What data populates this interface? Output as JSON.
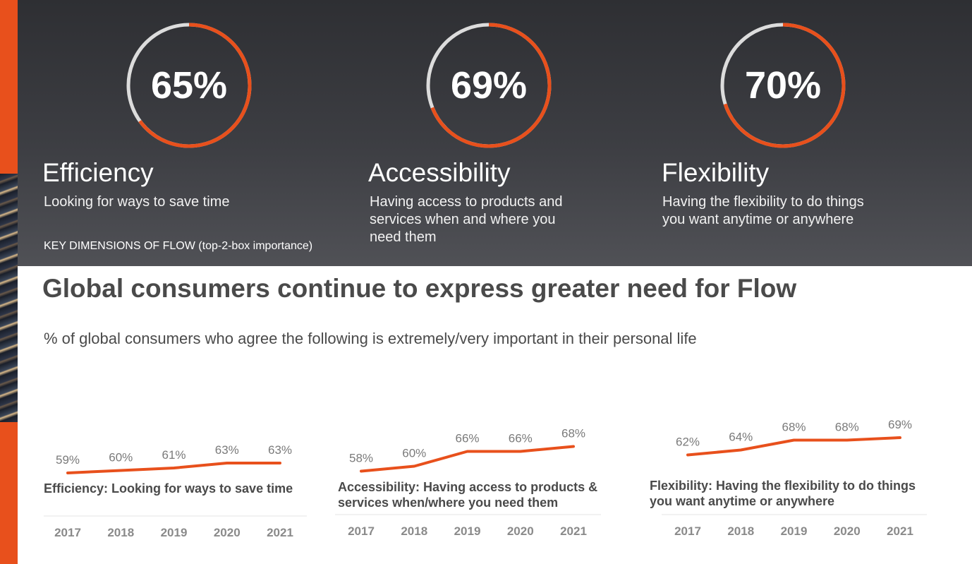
{
  "colors": {
    "accent": "#e8501c",
    "ring_track": "#dcdcdc",
    "axis_line": "#e6e6e6"
  },
  "dimensions": [
    {
      "value_label": "65%",
      "value": 65,
      "title": "Efficiency",
      "description": "Looking for ways to save time"
    },
    {
      "value_label": "69%",
      "value": 69,
      "title": "Accessibility",
      "description": "Having access to products and services when and where you need them"
    },
    {
      "value_label": "70%",
      "value": 70,
      "title": "Flexibility",
      "description": "Having the flexibility to do things you want anytime or anywhere"
    }
  ],
  "dimensions_caption": "KEY DIMENSIONS OF FLOW (top-2-box importance)",
  "headline": "Global consumers continue to express greater need for Flow",
  "subheadline": "% of global consumers who agree the following is extremely/very important in their personal life",
  "chart_data": [
    {
      "type": "line",
      "title": "Efficiency: Looking for ways to save time",
      "categories": [
        "2017",
        "2018",
        "2019",
        "2020",
        "2021"
      ],
      "values": [
        59,
        60,
        61,
        63,
        63
      ],
      "value_labels": [
        "59%",
        "60%",
        "61%",
        "63%",
        "63%"
      ],
      "ylim": [
        50,
        75
      ],
      "xlabel": "",
      "ylabel": ""
    },
    {
      "type": "line",
      "title": "Accessibility: Having access to products & services when/where you need them",
      "categories": [
        "2017",
        "2018",
        "2019",
        "2020",
        "2021"
      ],
      "values": [
        58,
        60,
        66,
        66,
        68
      ],
      "value_labels": [
        "58%",
        "60%",
        "66%",
        "66%",
        "68%"
      ],
      "ylim": [
        50,
        75
      ],
      "xlabel": "",
      "ylabel": ""
    },
    {
      "type": "line",
      "title": "Flexibility: Having the flexibility to do things you want anytime or anywhere",
      "categories": [
        "2017",
        "2018",
        "2019",
        "2020",
        "2021"
      ],
      "values": [
        62,
        64,
        68,
        68,
        69
      ],
      "value_labels": [
        "62%",
        "64%",
        "68%",
        "68%",
        "69%"
      ],
      "ylim": [
        50,
        75
      ],
      "xlabel": "",
      "ylabel": ""
    }
  ]
}
